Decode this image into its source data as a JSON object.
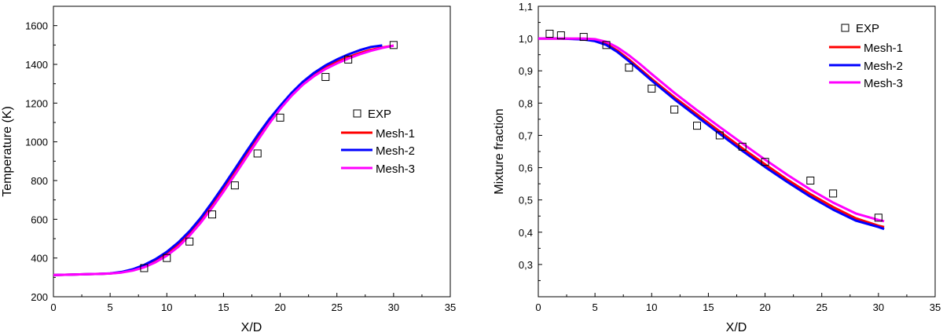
{
  "chart_data": [
    {
      "type": "line",
      "title": "",
      "xlabel": "X/D",
      "ylabel": "Temperature (K)",
      "xlim": [
        0,
        35
      ],
      "ylim": [
        200,
        1700
      ],
      "xticks": [
        0,
        5,
        10,
        15,
        20,
        25,
        30,
        35
      ],
      "yticks": [
        200,
        400,
        600,
        800,
        1000,
        1200,
        1400,
        1600
      ],
      "xtick_labels": [
        "0",
        "5",
        "10",
        "15",
        "20",
        "25",
        "30",
        "35"
      ],
      "ytick_labels": [
        "200",
        "400",
        "600",
        "800",
        "1000",
        "1200",
        "1400",
        "1600"
      ],
      "legend_position": "right-middle",
      "grid": false,
      "scatter": {
        "name": "EXP",
        "marker": "open-square",
        "x": [
          8,
          10,
          12,
          14,
          16,
          18,
          20,
          24,
          26,
          30
        ],
        "y": [
          348,
          400,
          485,
          625,
          775,
          940,
          1125,
          1335,
          1425,
          1500
        ]
      },
      "series": [
        {
          "name": "Mesh-1",
          "color": "#ff0000",
          "x": [
            0,
            2,
            4,
            5,
            6,
            7,
            8,
            9,
            10,
            11,
            12,
            13,
            14,
            15,
            16,
            17,
            18,
            19,
            20,
            21,
            22,
            23,
            24,
            25,
            26,
            27,
            28,
            29,
            30
          ],
          "y": [
            312,
            315,
            318,
            320,
            326,
            338,
            358,
            385,
            420,
            468,
            528,
            598,
            676,
            760,
            848,
            938,
            1026,
            1108,
            1182,
            1245,
            1300,
            1345,
            1383,
            1412,
            1437,
            1458,
            1475,
            1487,
            1497
          ]
        },
        {
          "name": "Mesh-2",
          "color": "#0000ff",
          "x": [
            0,
            2,
            4,
            5,
            6,
            7,
            8,
            9,
            10,
            11,
            12,
            13,
            14,
            15,
            16,
            17,
            18,
            19,
            20,
            21,
            22,
            23,
            24,
            25,
            26,
            27,
            28,
            29
          ],
          "y": [
            312,
            315,
            318,
            321,
            328,
            342,
            364,
            394,
            432,
            480,
            538,
            608,
            688,
            772,
            860,
            948,
            1034,
            1114,
            1186,
            1253,
            1310,
            1357,
            1395,
            1425,
            1451,
            1473,
            1490,
            1498
          ]
        },
        {
          "name": "Mesh-3",
          "color": "#ff00ff",
          "x": [
            0,
            2,
            4,
            5,
            6,
            7,
            8,
            9,
            10,
            11,
            12,
            13,
            14,
            15,
            16,
            17,
            18,
            19,
            20,
            21,
            22,
            23,
            24,
            25,
            26,
            27,
            28,
            29,
            30
          ],
          "y": [
            312,
            315,
            318,
            320,
            325,
            335,
            352,
            378,
            412,
            457,
            515,
            583,
            660,
            743,
            830,
            918,
            1006,
            1092,
            1170,
            1238,
            1295,
            1340,
            1376,
            1405,
            1430,
            1452,
            1470,
            1485,
            1497
          ]
        }
      ]
    },
    {
      "type": "line",
      "title": "",
      "xlabel": "X/D",
      "ylabel": "Mixture fraction",
      "xlim": [
        0,
        35
      ],
      "ylim": [
        0.2,
        1.1
      ],
      "xticks": [
        0,
        5,
        10,
        15,
        20,
        25,
        30,
        35
      ],
      "yticks": [
        0.2,
        0.3,
        0.4,
        0.5,
        0.6,
        0.7,
        0.8,
        0.9,
        1.0,
        1.1
      ],
      "xtick_labels": [
        "0",
        "5",
        "10",
        "15",
        "20",
        "25",
        "30",
        "35"
      ],
      "ytick_labels": [
        "",
        "0,3",
        "0,4",
        "0,5",
        "0,6",
        "0,7",
        "0,8",
        "0,9",
        "1,0",
        "1,1"
      ],
      "legend_position": "top-right",
      "grid": false,
      "scatter": {
        "name": "EXP",
        "marker": "open-square",
        "x": [
          1,
          2,
          4,
          6,
          8,
          10,
          12,
          14,
          16,
          18,
          20,
          24,
          26,
          30
        ],
        "y": [
          1.015,
          1.01,
          1.005,
          0.98,
          0.91,
          0.845,
          0.78,
          0.73,
          0.7,
          0.665,
          0.618,
          0.56,
          0.52,
          0.445
        ]
      },
      "series": [
        {
          "name": "Mesh-1",
          "color": "#ff0000",
          "x": [
            0,
            2,
            4,
            5,
            6,
            7,
            8,
            9,
            10,
            12,
            14,
            16,
            18,
            20,
            22,
            24,
            26,
            28,
            30,
            30.5
          ],
          "y": [
            1.0,
            1.0,
            0.998,
            0.994,
            0.983,
            0.962,
            0.935,
            0.905,
            0.875,
            0.818,
            0.765,
            0.712,
            0.66,
            0.61,
            0.562,
            0.518,
            0.478,
            0.443,
            0.42,
            0.416
          ]
        },
        {
          "name": "Mesh-2",
          "color": "#0000ff",
          "x": [
            0,
            2,
            4,
            5,
            6,
            7,
            8,
            9,
            10,
            12,
            14,
            16,
            18,
            20,
            22,
            24,
            26,
            28,
            30,
            30.5
          ],
          "y": [
            1.0,
            1.0,
            0.997,
            0.992,
            0.98,
            0.958,
            0.93,
            0.9,
            0.87,
            0.812,
            0.758,
            0.705,
            0.652,
            0.602,
            0.555,
            0.51,
            0.47,
            0.436,
            0.416,
            0.41
          ]
        },
        {
          "name": "Mesh-3",
          "color": "#ff00ff",
          "x": [
            0,
            2,
            4,
            5,
            6,
            7,
            8,
            9,
            10,
            12,
            14,
            16,
            18,
            20,
            22,
            24,
            26,
            28,
            30,
            30.5
          ],
          "y": [
            1.0,
            1.0,
            1.0,
            0.998,
            0.99,
            0.972,
            0.948,
            0.92,
            0.89,
            0.832,
            0.778,
            0.726,
            0.675,
            0.625,
            0.577,
            0.532,
            0.492,
            0.458,
            0.438,
            0.434
          ]
        }
      ]
    }
  ]
}
